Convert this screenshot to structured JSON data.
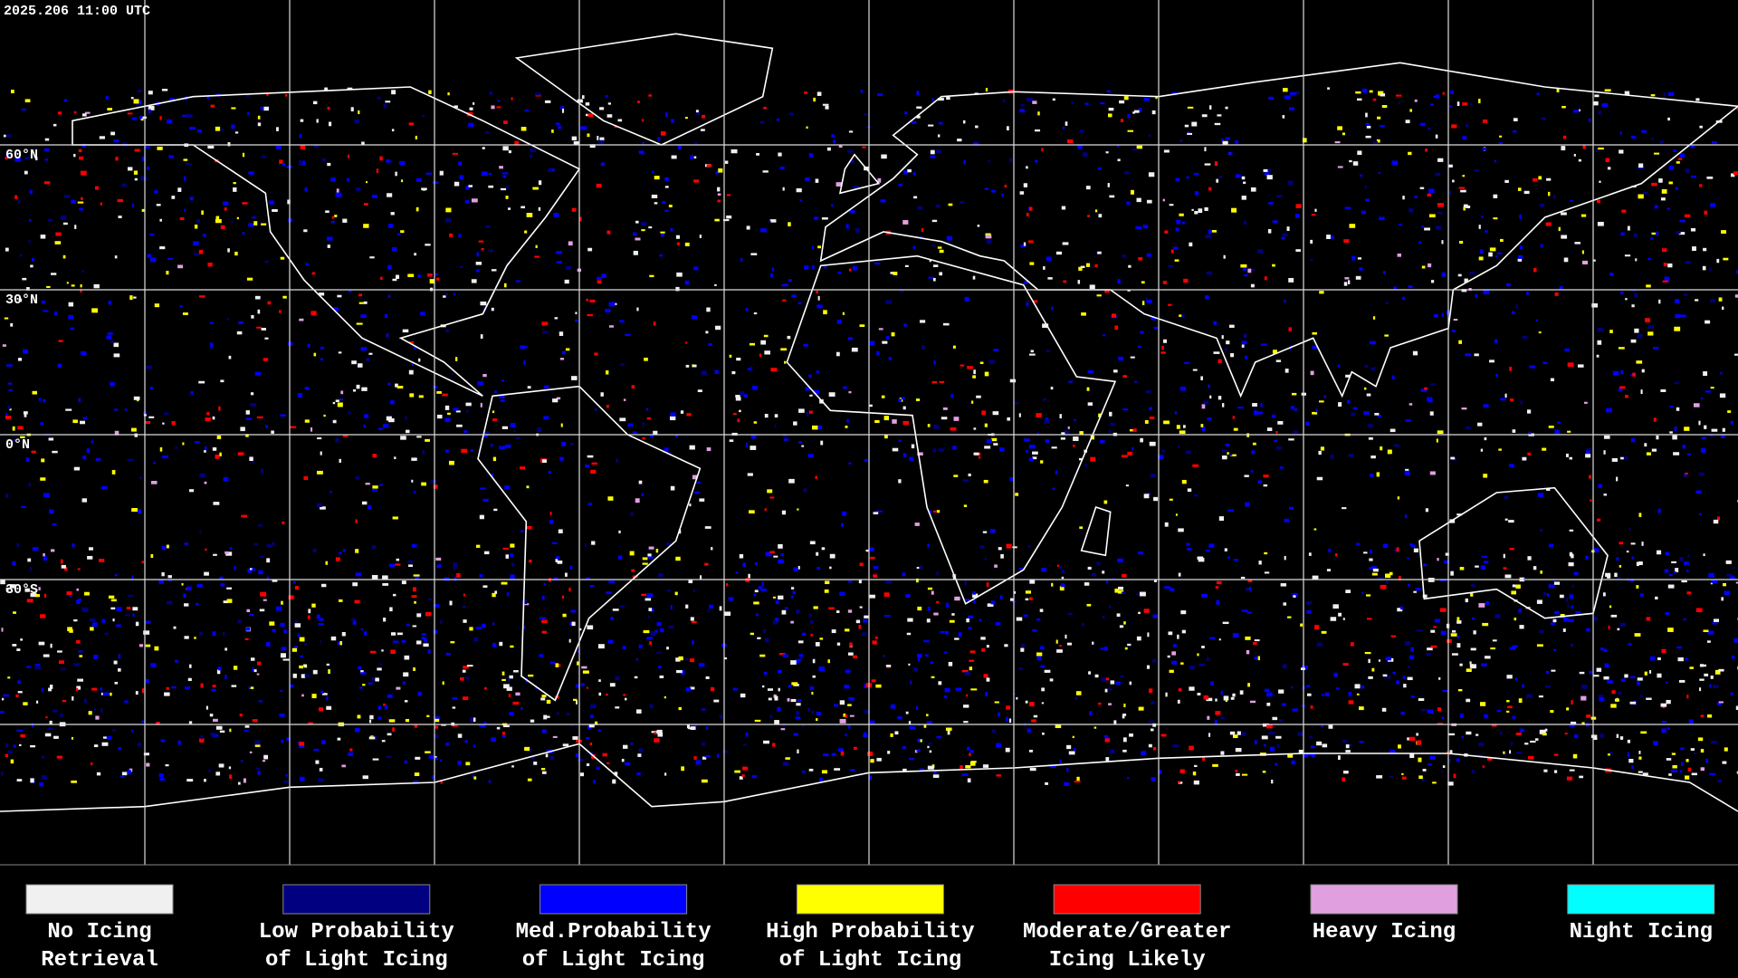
{
  "timestamp": "2025.206 11:00 UTC",
  "latitude_labels": [
    "60°N",
    "30°N",
    "0°N",
    "30°S"
  ],
  "legend": [
    {
      "lines": [
        "No Icing",
        "Retrieval"
      ],
      "color": "#f0f0f0"
    },
    {
      "lines": [
        "Low Probability",
        "of Light Icing"
      ],
      "color": "#000080"
    },
    {
      "lines": [
        "Med.Probability",
        "of Light Icing"
      ],
      "color": "#0000ff"
    },
    {
      "lines": [
        "High Probability",
        "of Light Icing"
      ],
      "color": "#ffff00"
    },
    {
      "lines": [
        "Moderate/Greater",
        "Icing Likely"
      ],
      "color": "#ff0000"
    },
    {
      "lines": [
        "Heavy Icing"
      ],
      "color": "#e0a0e0"
    },
    {
      "lines": [
        "Night Icing"
      ],
      "color": "#00ffff"
    }
  ]
}
